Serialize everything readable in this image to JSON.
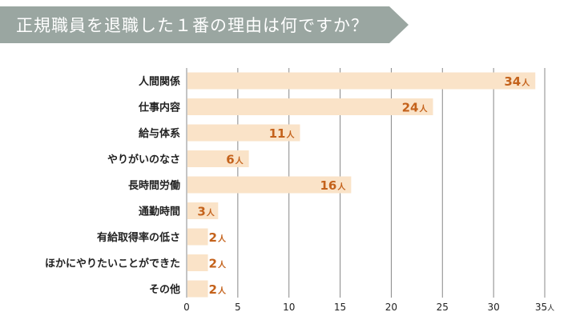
{
  "title": "正規職員を退職した１番の理由は何ですか？",
  "colors": {
    "bar": "#fae3c8",
    "value": "#c4621b",
    "grid": "#888888",
    "banner": "#9aa6a1"
  },
  "chart_data": {
    "type": "bar",
    "orientation": "horizontal",
    "categories": [
      "人間関係",
      "仕事内容",
      "給与体系",
      "やりがいのなさ",
      "長時間労働",
      "通勤時間",
      "有給取得率の低さ",
      "ほかにやりたいことができた",
      "その他"
    ],
    "values": [
      34,
      24,
      11,
      6,
      16,
      3,
      2,
      2,
      2
    ],
    "value_unit": "人",
    "xlim": [
      0,
      35
    ],
    "xticks": [
      0,
      5,
      10,
      15,
      20,
      25,
      30,
      35
    ],
    "xaxis_unit": "人",
    "grid": true
  }
}
